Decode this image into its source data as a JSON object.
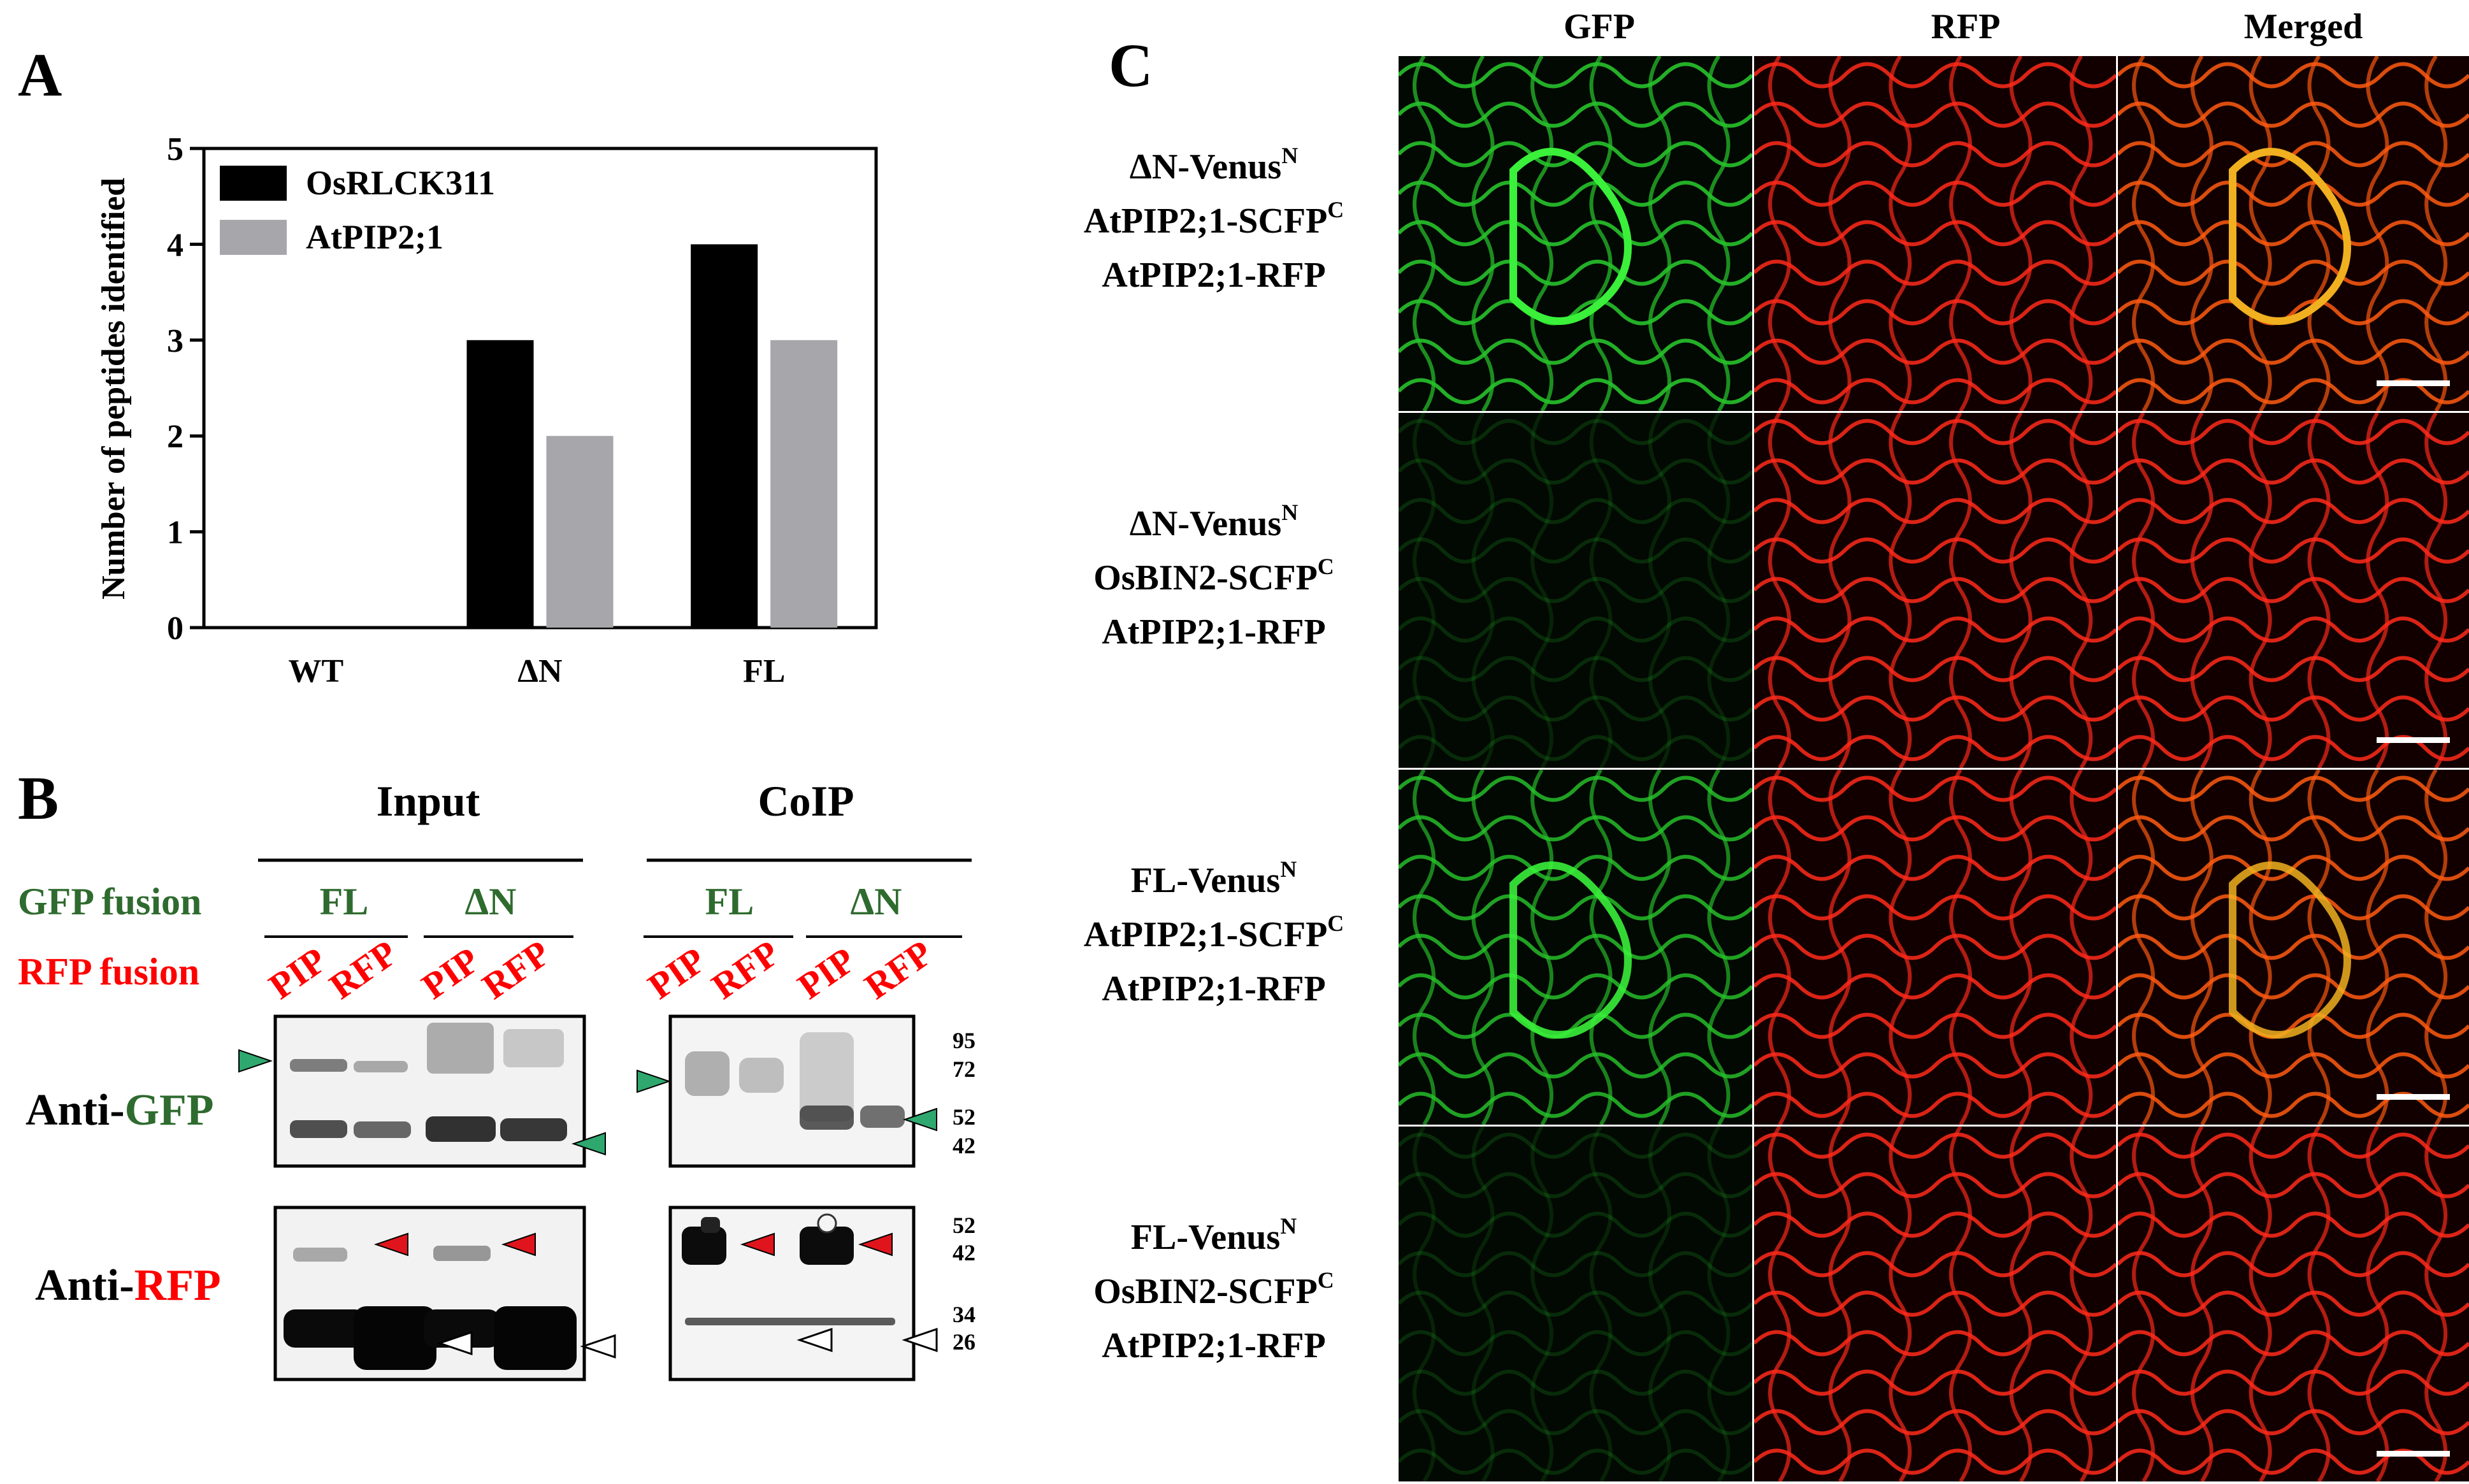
{
  "panel_a": {
    "letter": "A",
    "chart_data": {
      "type": "bar",
      "categories": [
        "WT",
        "ΔN",
        "FL"
      ],
      "series": [
        {
          "name": "OsRLCK311",
          "values": [
            0,
            3,
            4
          ],
          "color": "#000000"
        },
        {
          "name": "AtPIP2;1",
          "values": [
            0,
            2,
            3
          ],
          "color": "#a6a6ab"
        }
      ],
      "xlabel": "",
      "ylabel": "Number of peptides identified",
      "ylim": [
        0,
        5
      ],
      "yticks": [
        "0",
        "1",
        "2",
        "3",
        "4",
        "5"
      ],
      "legend_position": "top-left",
      "grid": false
    }
  },
  "panel_b": {
    "letter": "B",
    "input_label": "Input",
    "coip_label": "CoIP",
    "gfp_fusion_label": "GFP fusion",
    "rfp_fusion_label": "RFP fusion",
    "input_groups": [
      "FL",
      "ΔN"
    ],
    "coip_groups": [
      "FL",
      "ΔN"
    ],
    "lane_labels": [
      "PIP",
      "RFP",
      "PIP",
      "RFP"
    ],
    "anti_gfp": {
      "prefix": "Anti-",
      "target": "GFP"
    },
    "anti_rfp": {
      "prefix": "Anti-",
      "target": "RFP"
    },
    "gfp_markers": [
      "95",
      "72",
      "52",
      "42"
    ],
    "rfp_markers": [
      "52",
      "42",
      "34",
      "26"
    ],
    "colors": {
      "gfp_green": "#2f6b2f",
      "rfp_red": "#ff0000",
      "arrow_green": "#2ea86e",
      "arrow_red": "#e0141c"
    }
  },
  "panel_c": {
    "letter": "C",
    "columns": [
      "GFP",
      "RFP",
      "Merged"
    ],
    "rows": [
      {
        "line1": {
          "base": "ΔN-Venus",
          "sup": "N"
        },
        "line2": {
          "base": "AtPIP2;1-SCFP",
          "sup": "C"
        },
        "line3": "AtPIP2;1-RFP",
        "gfp_signal": 1.0,
        "merge_yellow": 1.0
      },
      {
        "line1": {
          "base": "ΔN-Venus",
          "sup": "N"
        },
        "line2": {
          "base": "OsBIN2-SCFP",
          "sup": "C"
        },
        "line3": "AtPIP2;1-RFP",
        "gfp_signal": 0.05,
        "merge_yellow": 0.0
      },
      {
        "line1": {
          "base": "FL-Venus",
          "sup": "N"
        },
        "line2": {
          "base": "AtPIP2;1-SCFP",
          "sup": "C"
        },
        "line3": "AtPIP2;1-RFP",
        "gfp_signal": 0.9,
        "merge_yellow": 0.85
      },
      {
        "line1": {
          "base": "FL-Venus",
          "sup": "N"
        },
        "line2": {
          "base": "OsBIN2-SCFP",
          "sup": "C"
        },
        "line3": "AtPIP2;1-RFP",
        "gfp_signal": 0.05,
        "merge_yellow": 0.0
      }
    ]
  }
}
